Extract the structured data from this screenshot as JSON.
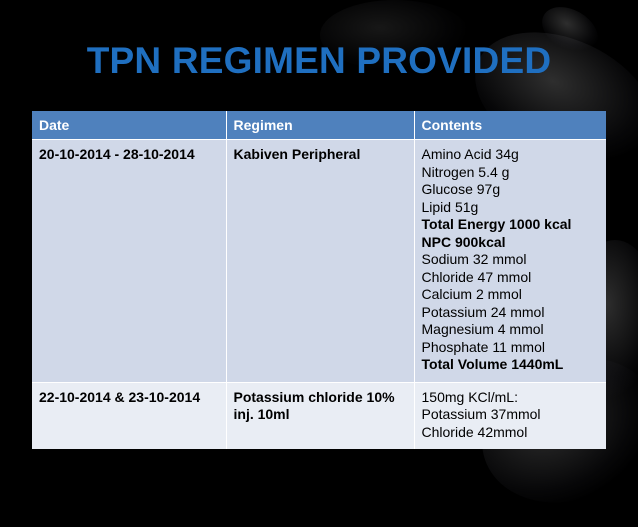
{
  "title": "TPN REGIMEN PROVIDED",
  "table": {
    "headers": [
      "Date",
      "Regimen",
      "Contents"
    ],
    "rows": [
      {
        "date": "20-10-2014 - 28-10-2014",
        "regimen": "Kabiven Peripheral",
        "contents": [
          {
            "text": "Amino Acid 34g",
            "bold": false
          },
          {
            "text": "Nitrogen 5.4 g",
            "bold": false
          },
          {
            "text": "Glucose 97g",
            "bold": false
          },
          {
            "text": "Lipid 51g",
            "bold": false
          },
          {
            "text": "Total Energy 1000 kcal",
            "bold": true
          },
          {
            "text": "NPC 900kcal",
            "bold": true
          },
          {
            "text": "Sodium 32 mmol",
            "bold": false
          },
          {
            "text": "Chloride 47 mmol",
            "bold": false
          },
          {
            "text": "Calcium 2 mmol",
            "bold": false
          },
          {
            "text": "Potassium 24 mmol",
            "bold": false
          },
          {
            "text": "Magnesium 4 mmol",
            "bold": false
          },
          {
            "text": "Phosphate 11 mmol",
            "bold": false
          },
          {
            "text": "Total Volume 1440mL",
            "bold": true
          }
        ]
      },
      {
        "date": "22-10-2014 & 23-10-2014",
        "regimen": "Potassium chloride 10% inj. 10ml",
        "contents": [
          {
            "text": "150mg KCl/mL:",
            "bold": false
          },
          {
            "text": "Potassium 37mmol",
            "bold": false
          },
          {
            "text": "Chloride 42mmol",
            "bold": false
          }
        ]
      }
    ]
  },
  "colors": {
    "title": "#1f6fc0",
    "header_bg": "#4f81bd",
    "row1_bg": "#d0d8e8",
    "row2_bg": "#e9edf4",
    "background": "#000000"
  }
}
